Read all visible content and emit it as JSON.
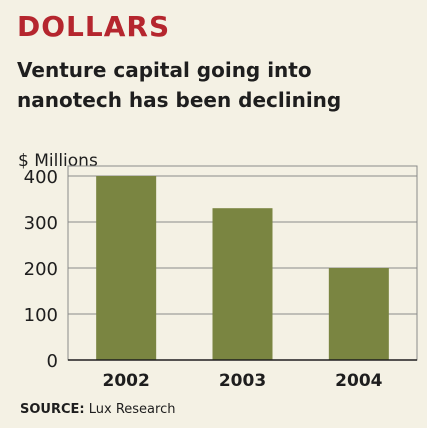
{
  "header": {
    "title": "DOLLARS",
    "subtitle": "Venture capital going into nanotech has been declining"
  },
  "chart_data": {
    "type": "bar",
    "title": "",
    "ylabel": "$ Millions",
    "xlabel": "",
    "categories": [
      "2002",
      "2003",
      "2004"
    ],
    "values": [
      400,
      330,
      200
    ],
    "ylim": [
      0,
      400
    ],
    "yticks": [
      0,
      100,
      200,
      300,
      400
    ],
    "grid": true,
    "bar_color": "#7a8541",
    "grid_color": "#8a8a8a"
  },
  "footer": {
    "source_label": "SOURCE:",
    "source_value": "Lux Research"
  }
}
